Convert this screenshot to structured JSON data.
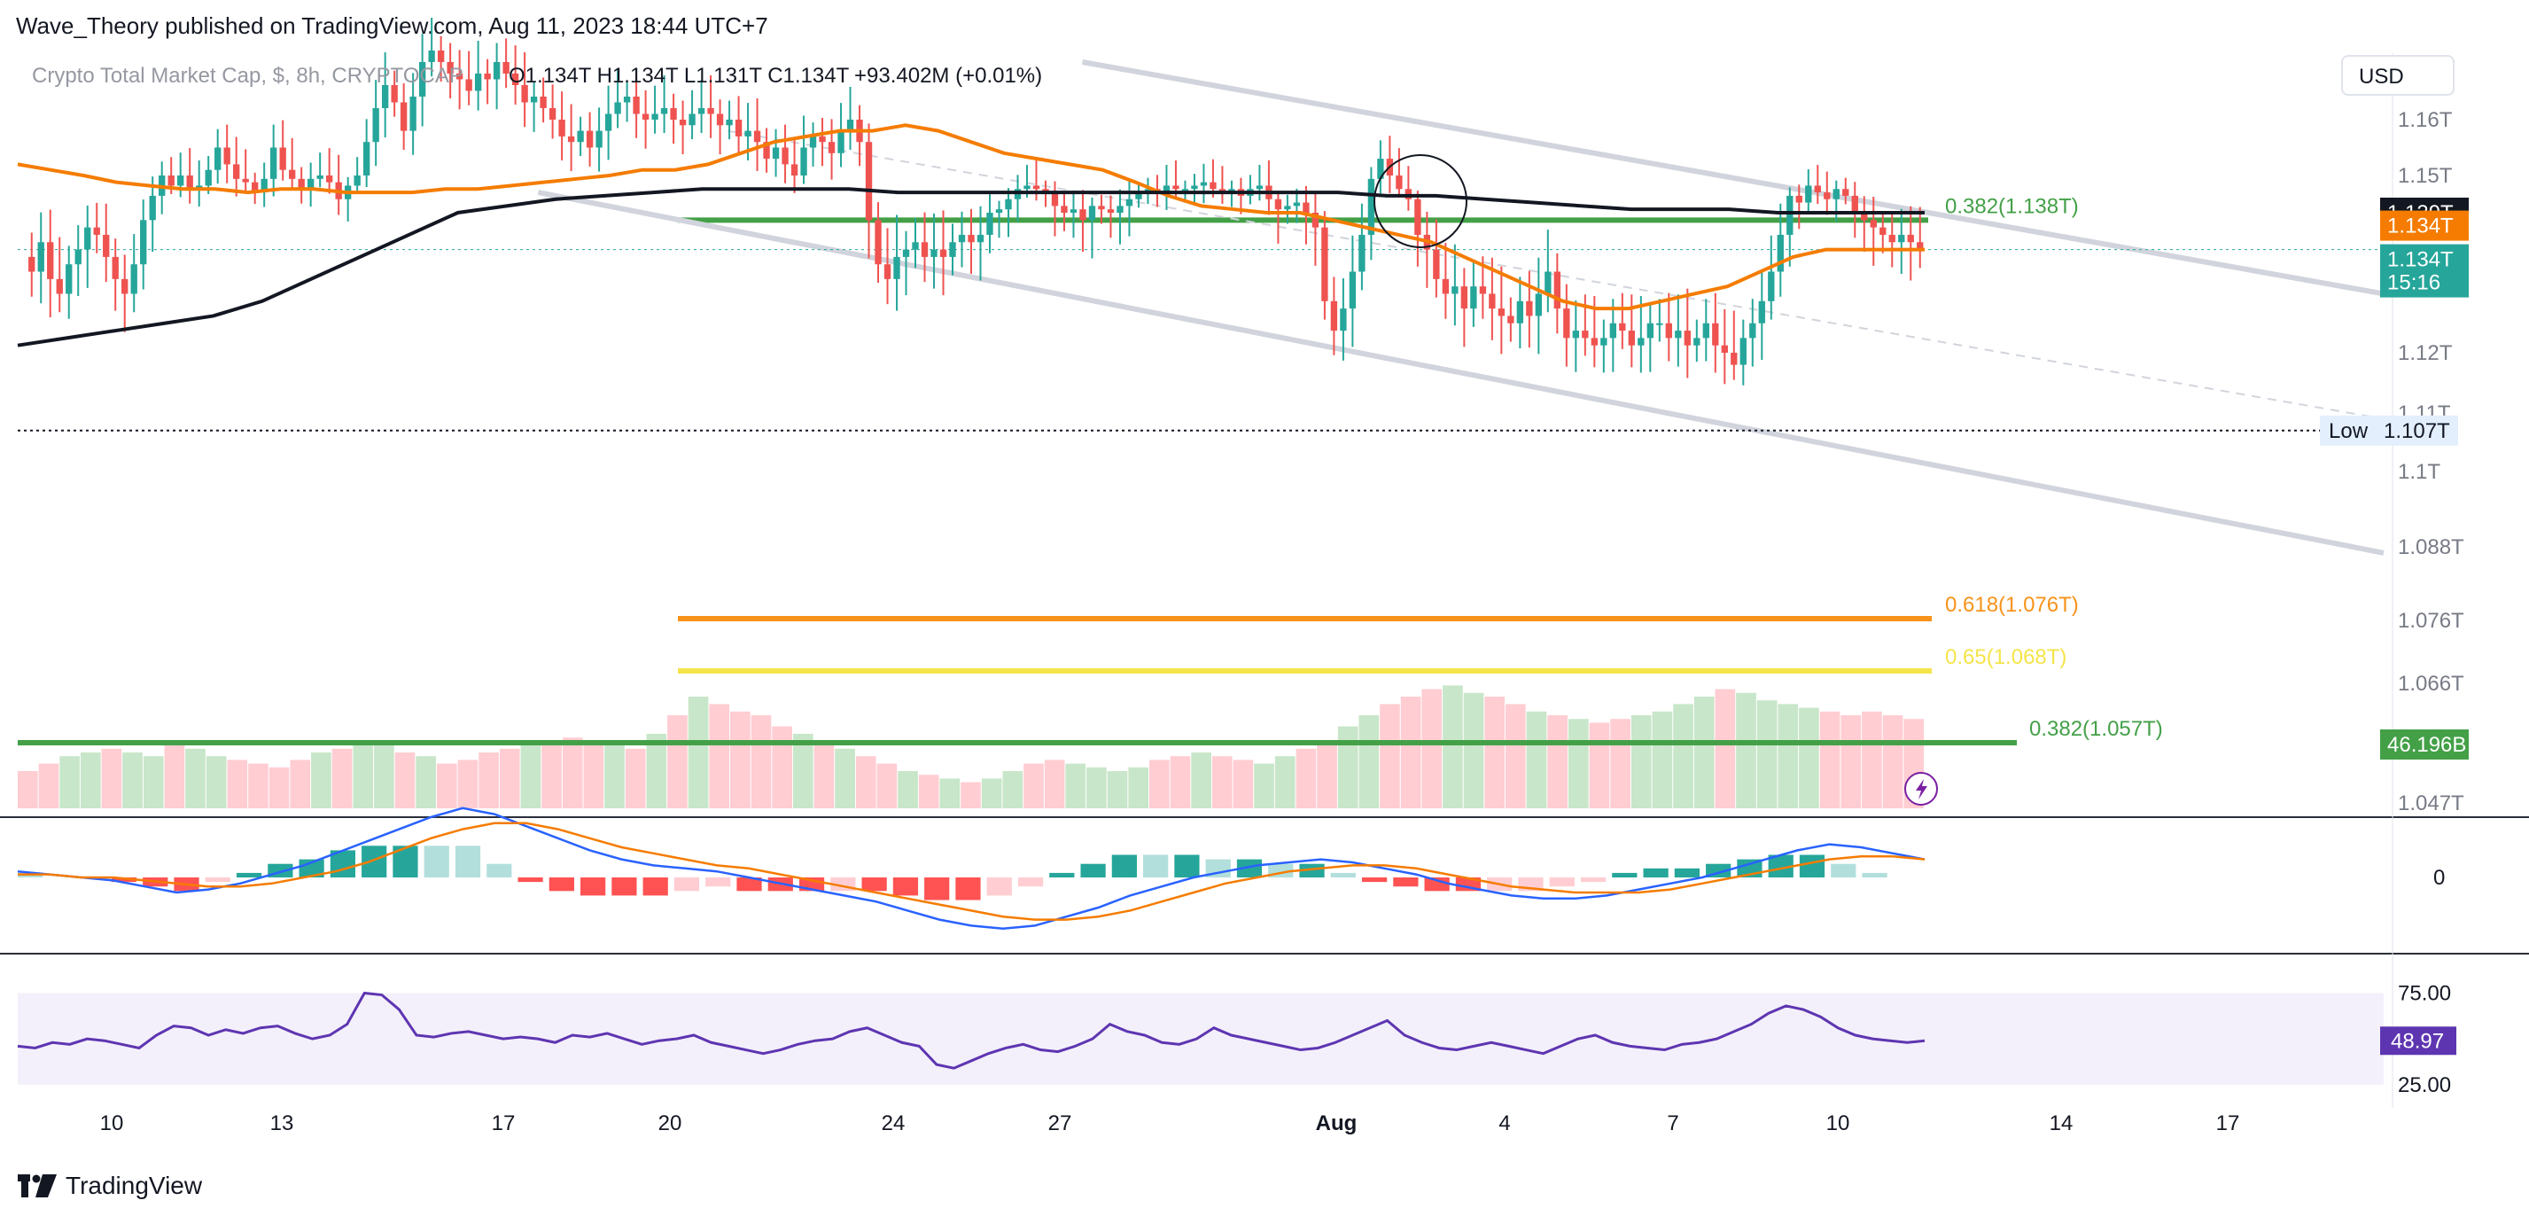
{
  "header": {
    "publisher_line": "Wave_Theory published on TradingView.com, Aug 11, 2023 18:44 UTC+7"
  },
  "legend": {
    "symbol_line": "Crypto Total Market Cap, $, 8h, CRYPTOCAP",
    "ohlc": "O1.134T H1.134T L1.131T C1.134T",
    "change": "+93.402M (+0.01%)"
  },
  "currency_button": "USD",
  "footer": {
    "brand": "TradingView"
  },
  "colors": {
    "up": "#26a69a",
    "down": "#ef5350",
    "ema50": "#f57c00",
    "ema200": "#131722",
    "fib_green": "#43a047",
    "fib_orange": "#f7931a",
    "fib_yellow": "#f5e44a",
    "channel": "#d1d4dc",
    "macd_line": "#2962ff",
    "signal_line": "#f57c00",
    "rsi_line": "#5e35b1",
    "rsi_band": "#f3f0fb",
    "vol_up": "#c8e6c9",
    "vol_down": "#ffcdd2"
  },
  "chart_data": [
    {
      "type": "candlestick",
      "title": "Crypto Total Market Cap, $, 8h, CRYPTOCAP",
      "ylim": [
        1.04,
        1.165
      ],
      "y_unit": "T",
      "y_ticks": [
        "1.16T",
        "1.15T",
        "1.139T",
        "1.134T",
        "1.12T",
        "1.11T",
        "1.1T",
        "1.088T",
        "1.076T",
        "1.066T",
        "1.047T"
      ],
      "x_ticks": [
        "10",
        "13",
        "17",
        "20",
        "24",
        "27",
        "Aug",
        "4",
        "7",
        "10",
        "14",
        "17"
      ],
      "price_labels": [
        {
          "label": "1.139T",
          "value": 1.139,
          "kind": "ema200"
        },
        {
          "label": "1.134T",
          "value": 1.134,
          "kind": "ema50"
        },
        {
          "label": "1.134T",
          "sub": "15:16",
          "value": 1.134,
          "kind": "last"
        },
        {
          "label": "1.107T",
          "prefix": "Low",
          "value": 1.107,
          "kind": "low"
        },
        {
          "label": "46.196B",
          "value": 0.0462,
          "kind": "volume"
        }
      ],
      "fib_levels": [
        {
          "label": "0.382(1.138T)",
          "value": 1.138,
          "color": "#43a047"
        },
        {
          "label": "0.618(1.076T)",
          "value": 1.076,
          "color": "#f7931a"
        },
        {
          "label": "0.65(1.068T)",
          "value": 1.068,
          "color": "#f5e44a"
        },
        {
          "label": "0.382(1.057T)",
          "value": 1.057,
          "color": "#43a047"
        }
      ],
      "closes": [
        1.133,
        1.131,
        1.135,
        1.13,
        1.128,
        1.132,
        1.134,
        1.137,
        1.136,
        1.133,
        1.13,
        1.128,
        1.132,
        1.138,
        1.144,
        1.15,
        1.147,
        1.15,
        1.146,
        1.147,
        1.151,
        1.155,
        1.152,
        1.149,
        1.148,
        1.145,
        1.149,
        1.155,
        1.151,
        1.149,
        1.146,
        1.149,
        1.15,
        1.148,
        1.143,
        1.147,
        1.15,
        1.156,
        1.162,
        1.166,
        1.163,
        1.158,
        1.164,
        1.17,
        1.172,
        1.17,
        1.168,
        1.167,
        1.165,
        1.168,
        1.167,
        1.17,
        1.168,
        1.166,
        1.163,
        1.164,
        1.162,
        1.16,
        1.157,
        1.156,
        1.158,
        1.155,
        1.158,
        1.161,
        1.163,
        1.164,
        1.161,
        1.16,
        1.161,
        1.162,
        1.16,
        1.159,
        1.161,
        1.162,
        1.161,
        1.159,
        1.16,
        1.157,
        1.158,
        1.156,
        1.153,
        1.155,
        1.152,
        1.15,
        1.155,
        1.157,
        1.156,
        1.154,
        1.158,
        1.16,
        1.156,
        1.138,
        1.132,
        1.13,
        1.133,
        1.134,
        1.135,
        1.133,
        1.134,
        1.133,
        1.135,
        1.136,
        1.135,
        1.136,
        1.139,
        1.14,
        1.143,
        1.146,
        1.147,
        1.146,
        1.145,
        1.141,
        1.139,
        1.14,
        1.138,
        1.141,
        1.14,
        1.139,
        1.141,
        1.143,
        1.145,
        1.146,
        1.145,
        1.147,
        1.146,
        1.146,
        1.147,
        1.148,
        1.146,
        1.145,
        1.146,
        1.144,
        1.146,
        1.147,
        1.143,
        1.14,
        1.141,
        1.142,
        1.139,
        1.137,
        1.127,
        1.123,
        1.126,
        1.131,
        1.136,
        1.149,
        1.153,
        1.15,
        1.146,
        1.143,
        1.136,
        1.134,
        1.13,
        1.128,
        1.129,
        1.126,
        1.129,
        1.128,
        1.126,
        1.125,
        1.124,
        1.127,
        1.125,
        1.128,
        1.131,
        1.126,
        1.122,
        1.123,
        1.122,
        1.121,
        1.122,
        1.124,
        1.123,
        1.121,
        1.122,
        1.124,
        1.124,
        1.122,
        1.123,
        1.121,
        1.122,
        1.124,
        1.121,
        1.12,
        1.118,
        1.122,
        1.124,
        1.127,
        1.131,
        1.136,
        1.144,
        1.142,
        1.147,
        1.145,
        1.143,
        1.146,
        1.144,
        1.139,
        1.138,
        1.137,
        1.136,
        1.135,
        1.136,
        1.135,
        1.134
      ],
      "ema50": [
        1.152,
        1.151,
        1.15,
        1.148,
        1.147,
        1.146,
        1.146,
        1.145,
        1.146,
        1.146,
        1.145,
        1.145,
        1.145,
        1.146,
        1.146,
        1.147,
        1.148,
        1.149,
        1.15,
        1.151,
        1.151,
        1.152,
        1.154,
        1.156,
        1.157,
        1.158,
        1.158,
        1.159,
        1.158,
        1.156,
        1.154,
        1.153,
        1.152,
        1.151,
        1.148,
        1.144,
        1.141,
        1.14,
        1.139,
        1.139,
        1.138,
        1.137,
        1.136,
        1.135,
        1.133,
        1.131,
        1.129,
        1.127,
        1.126,
        1.126,
        1.127,
        1.128,
        1.129,
        1.131,
        1.133,
        1.134,
        1.134,
        1.134,
        1.134
      ],
      "ema200": [
        1.121,
        1.122,
        1.123,
        1.124,
        1.125,
        1.127,
        1.13,
        1.133,
        1.136,
        1.139,
        1.141,
        1.143,
        1.144,
        1.145,
        1.146,
        1.146,
        1.146,
        1.146,
        1.145,
        1.145,
        1.145,
        1.145,
        1.145,
        1.145,
        1.145,
        1.145,
        1.145,
        1.145,
        1.144,
        1.144,
        1.143,
        1.142,
        1.141,
        1.14,
        1.14,
        1.14,
        1.139,
        1.139,
        1.139,
        1.139
      ],
      "channel_upper": [
        [
          0.45,
          1.17
        ],
        [
          1.0,
          1.128
        ]
      ],
      "channel_lower": [
        [
          0.22,
          1.145
        ],
        [
          1.0,
          1.087
        ]
      ],
      "dashed_mid": [
        [
          0.3,
          1.158
        ],
        [
          1.0,
          1.109
        ]
      ]
    },
    {
      "type": "bar",
      "title": "Volume",
      "values": [
        0.4,
        0.42,
        0.44,
        0.45,
        0.46,
        0.45,
        0.44,
        0.47,
        0.46,
        0.44,
        0.43,
        0.42,
        0.41,
        0.43,
        0.45,
        0.46,
        0.48,
        0.47,
        0.45,
        0.44,
        0.42,
        0.43,
        0.45,
        0.46,
        0.47,
        0.48,
        0.49,
        0.48,
        0.47,
        0.46,
        0.5,
        0.55,
        0.6,
        0.58,
        0.56,
        0.55,
        0.52,
        0.5,
        0.48,
        0.46,
        0.44,
        0.42,
        0.4,
        0.39,
        0.38,
        0.37,
        0.38,
        0.4,
        0.42,
        0.43,
        0.42,
        0.41,
        0.4,
        0.41,
        0.43,
        0.44,
        0.45,
        0.44,
        0.43,
        0.42,
        0.44,
        0.46,
        0.48,
        0.52,
        0.55,
        0.58,
        0.6,
        0.62,
        0.63,
        0.61,
        0.6,
        0.58,
        0.56,
        0.55,
        0.54,
        0.53,
        0.54,
        0.55,
        0.56,
        0.58,
        0.6,
        0.62,
        0.61,
        0.59,
        0.58,
        0.57,
        0.56,
        0.55,
        0.56,
        0.55,
        0.54
      ],
      "last_label": "46.196B"
    },
    {
      "type": "line",
      "title": "MACD",
      "y_ticks": [
        "0"
      ],
      "macd": [
        0.2,
        0.1,
        0.0,
        -0.1,
        -0.3,
        -0.5,
        -0.4,
        -0.2,
        0.1,
        0.4,
        0.8,
        1.2,
        1.6,
        2.0,
        2.3,
        2.1,
        1.7,
        1.3,
        0.9,
        0.6,
        0.4,
        0.3,
        0.2,
        0.0,
        -0.2,
        -0.4,
        -0.6,
        -0.8,
        -1.1,
        -1.4,
        -1.6,
        -1.7,
        -1.6,
        -1.3,
        -1.0,
        -0.6,
        -0.3,
        0.0,
        0.2,
        0.4,
        0.5,
        0.6,
        0.5,
        0.3,
        0.1,
        -0.2,
        -0.4,
        -0.6,
        -0.7,
        -0.7,
        -0.6,
        -0.4,
        -0.2,
        0.0,
        0.3,
        0.6,
        0.9,
        1.1,
        1.0,
        0.8,
        0.6
      ],
      "signal": [
        0.1,
        0.1,
        0.0,
        0.0,
        -0.1,
        -0.2,
        -0.3,
        -0.3,
        -0.2,
        0.0,
        0.2,
        0.5,
        0.9,
        1.3,
        1.6,
        1.8,
        1.8,
        1.6,
        1.3,
        1.0,
        0.8,
        0.6,
        0.4,
        0.3,
        0.1,
        -0.1,
        -0.3,
        -0.5,
        -0.7,
        -0.9,
        -1.1,
        -1.3,
        -1.4,
        -1.4,
        -1.3,
        -1.1,
        -0.8,
        -0.5,
        -0.2,
        0.0,
        0.2,
        0.3,
        0.4,
        0.4,
        0.3,
        0.1,
        -0.1,
        -0.3,
        -0.4,
        -0.5,
        -0.5,
        -0.5,
        -0.4,
        -0.2,
        0.0,
        0.2,
        0.4,
        0.6,
        0.7,
        0.7,
        0.6
      ]
    },
    {
      "type": "line",
      "title": "RSI",
      "y_ticks": [
        "75.00",
        "25.00"
      ],
      "ylim": [
        22,
        82
      ],
      "band": [
        30,
        70
      ],
      "last_label": "48.97",
      "values": [
        46,
        45,
        48,
        47,
        50,
        49,
        47,
        45,
        52,
        57,
        56,
        52,
        55,
        53,
        56,
        57,
        53,
        50,
        52,
        58,
        75,
        74,
        66,
        52,
        51,
        53,
        54,
        52,
        50,
        51,
        50,
        48,
        52,
        51,
        53,
        50,
        47,
        49,
        50,
        52,
        48,
        46,
        44,
        42,
        44,
        47,
        49,
        50,
        54,
        56,
        52,
        48,
        46,
        36,
        34,
        38,
        42,
        45,
        47,
        44,
        43,
        46,
        50,
        58,
        54,
        52,
        48,
        47,
        50,
        56,
        52,
        50,
        48,
        46,
        44,
        45,
        48,
        52,
        56,
        60,
        52,
        48,
        45,
        44,
        46,
        48,
        46,
        44,
        42,
        46,
        50,
        52,
        48,
        46,
        45,
        44,
        47,
        48,
        50,
        54,
        58,
        64,
        68,
        66,
        62,
        56,
        52,
        50,
        49,
        48,
        49
      ]
    }
  ]
}
